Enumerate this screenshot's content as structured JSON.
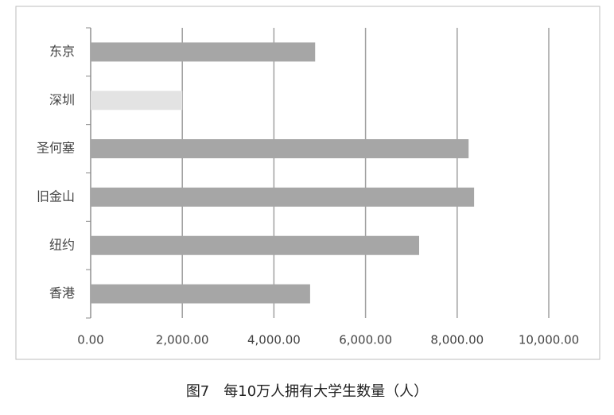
{
  "chart_data": {
    "type": "bar",
    "orientation": "horizontal",
    "title": "图7　每10万人拥有大学生数量（人）",
    "categories": [
      "东京",
      "深圳",
      "圣何塞",
      "旧金山",
      "纽约",
      "香港"
    ],
    "values": [
      4900,
      2000,
      8250,
      8370,
      7170,
      4790
    ],
    "colors": [
      "#a6a6a6",
      "#e3e3e3",
      "#a6a6a6",
      "#a6a6a6",
      "#a6a6a6",
      "#a6a6a6"
    ],
    "xlim": [
      0,
      10000
    ],
    "xticks": [
      {
        "value": 0,
        "label": "0.00"
      },
      {
        "value": 2000,
        "label": "2,000.00"
      },
      {
        "value": 4000,
        "label": "4,000.00"
      },
      {
        "value": 6000,
        "label": "6,000.00"
      },
      {
        "value": 8000,
        "label": "8,000.00"
      },
      {
        "value": 10000,
        "label": "10,000.00"
      }
    ],
    "grid": true
  }
}
